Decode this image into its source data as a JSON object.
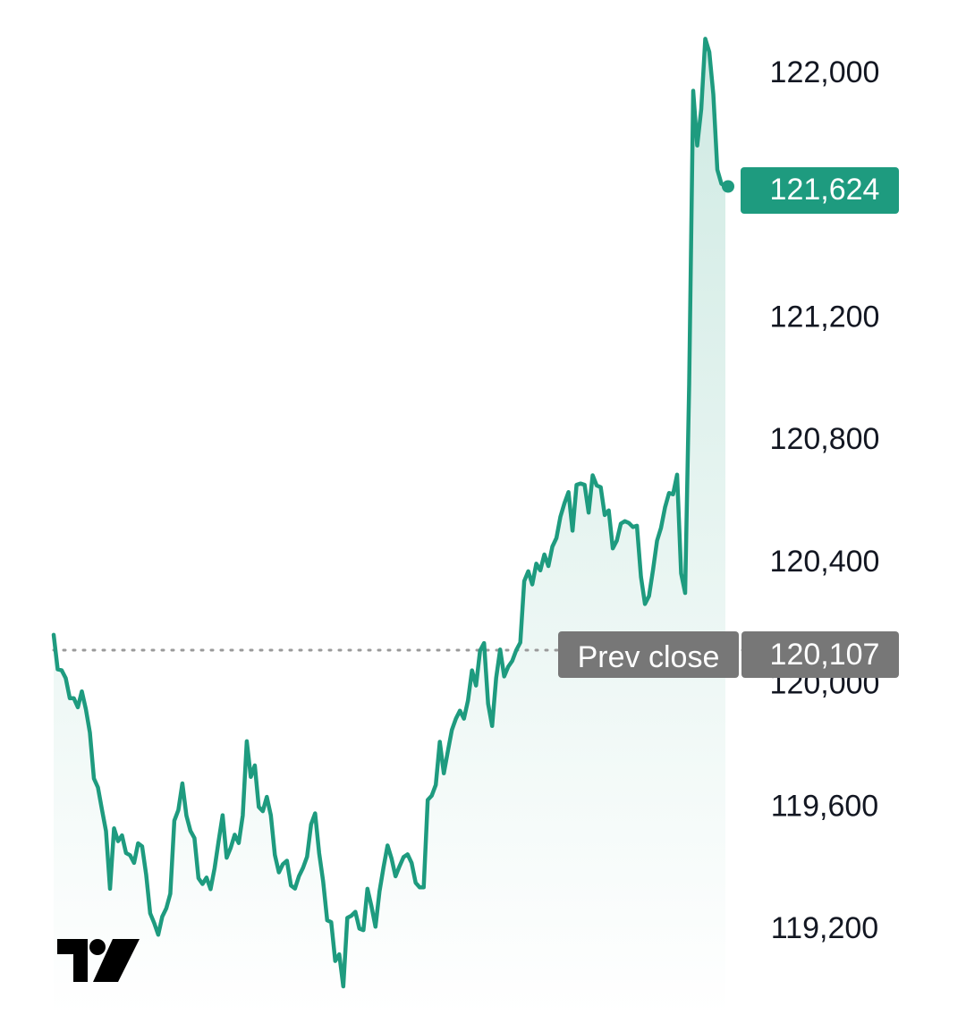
{
  "chart_data": {
    "type": "area",
    "title": "",
    "xlabel": "",
    "ylabel": "",
    "ylim": [
      118940,
      122180
    ],
    "y_ticks": [
      "122,000",
      "121,200",
      "120,800",
      "120,400",
      "120,000",
      "119,600",
      "119,200"
    ],
    "y_tick_values": [
      122000,
      121200,
      120800,
      120400,
      120000,
      119600,
      119200
    ],
    "series": [
      {
        "color": "#1e9b7f",
        "values": [
          120157,
          120044,
          120041,
          120015,
          119950,
          119950,
          119920,
          119972,
          119914,
          119837,
          119687,
          119658,
          119585,
          119515,
          119326,
          119524,
          119482,
          119501,
          119443,
          119436,
          119411,
          119475,
          119465,
          119373,
          119246,
          119214,
          119176,
          119235,
          119262,
          119310,
          119549,
          119584,
          119671,
          119566,
          119516,
          119492,
          119361,
          119342,
          119363,
          119325,
          119393,
          119482,
          119567,
          119428,
          119460,
          119503,
          119476,
          119566,
          119809,
          119692,
          119730,
          119594,
          119580,
          119627,
          119567,
          119437,
          119380,
          119407,
          119418,
          119337,
          119327,
          119368,
          119395,
          119431,
          119537,
          119573,
          119443,
          119350,
          119223,
          119217,
          119090,
          119112,
          119007,
          119231,
          119238,
          119251,
          119196,
          119191,
          119326,
          119269,
          119202,
          119318,
          119397,
          119468,
          119426,
          119367,
          119400,
          119430,
          119439,
          119411,
          119346,
          119331,
          119331,
          119617,
          119631,
          119666,
          119807,
          119704,
          119776,
          119846,
          119883,
          119909,
          119883,
          119942,
          120041,
          119991,
          120105,
          120130,
          119932,
          119859,
          120016,
          120109,
          120021,
          120053,
          120072,
          120107,
          120132,
          120333,
          120365,
          120322,
          120390,
          120368,
          120420,
          120382,
          120446,
          120474,
          120544,
          120588,
          120624,
          120498,
          120648,
          120652,
          120648,
          120557,
          120679,
          120646,
          120640,
          120549,
          120564,
          120440,
          120465,
          120521,
          120529,
          120523,
          120510,
          120514,
          120347,
          120258,
          120284,
          120370,
          120465,
          120507,
          120574,
          120621,
          120617,
          120681,
          120358,
          120294,
          120977,
          121937,
          121758,
          121877,
          122107,
          122064,
          121926,
          121679,
          121633,
          121624
        ]
      }
    ],
    "prev_close": 120107,
    "last_price": 121624,
    "grid": false,
    "legend": "none"
  },
  "colors": {
    "line": "#1e9b7f",
    "area_top": "#cfeae3",
    "area_bottom": "#ffffff",
    "badge_last": "#1e9b7f",
    "badge_prev": "#777777",
    "tick_text": "#131722",
    "prev_close_line": "#9a9a9a",
    "logo": "#000000"
  },
  "labels": {
    "last_price": "121,624",
    "prev_close_label": "Prev close",
    "prev_close_value": "120,107"
  },
  "icons": {
    "logo": "tradingview-logo-icon"
  }
}
